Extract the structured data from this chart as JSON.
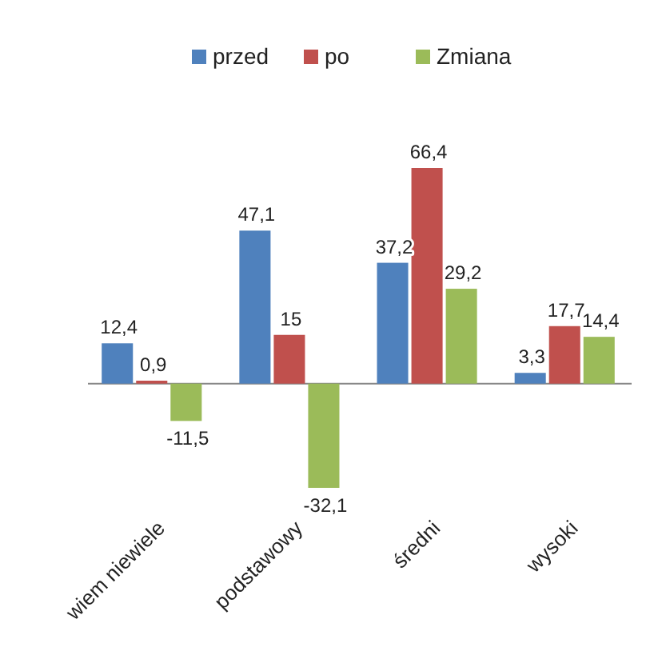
{
  "chart_data": {
    "type": "bar",
    "categories": [
      "wiem niewiele",
      "podstawowy",
      "średni",
      "wysoki"
    ],
    "series": [
      {
        "name": "przed",
        "color": "#4f81bd",
        "values": [
          12.4,
          47.1,
          37.2,
          3.3
        ],
        "value_labels": [
          "12,4",
          "47,1",
          "37,2",
          "3,3"
        ]
      },
      {
        "name": "po",
        "color": "#c0504d",
        "values": [
          0.9,
          15,
          66.4,
          17.7
        ],
        "value_labels": [
          "0,9",
          "15",
          "66,4",
          "17,7"
        ]
      },
      {
        "name": "Zmiana",
        "color": "#9bbb59",
        "values": [
          -11.5,
          -32.1,
          29.2,
          14.4
        ],
        "value_labels": [
          "-11,5",
          "-32,1",
          "29,2",
          "14,4"
        ]
      }
    ],
    "legend": "top"
  }
}
